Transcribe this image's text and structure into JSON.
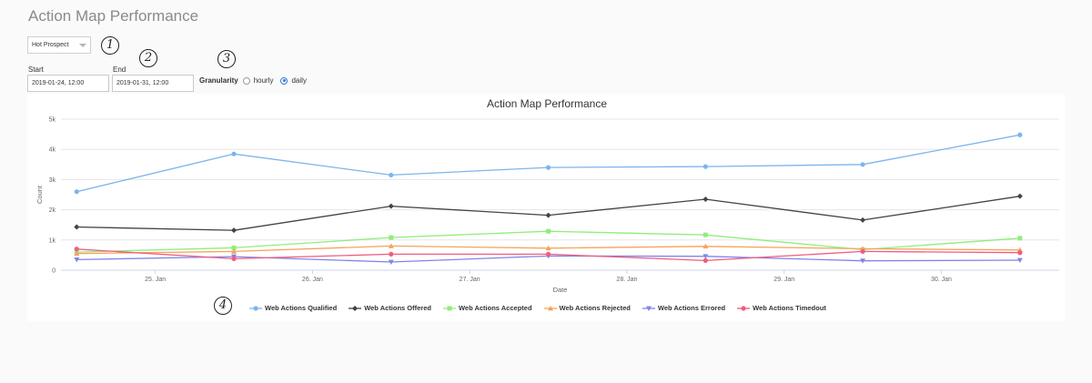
{
  "page": {
    "title": "Action Map Performance"
  },
  "controls": {
    "dropdown": {
      "value": "Hot Prospect"
    },
    "start": {
      "label": "Start",
      "value": "2019-01-24, 12:00"
    },
    "end": {
      "label": "End",
      "value": "2019-01-31, 12:00"
    },
    "granularity": {
      "label": "Granularity",
      "options": [
        "hourly",
        "daily"
      ],
      "selected": "daily"
    }
  },
  "annotations": [
    "1",
    "2",
    "3",
    "4"
  ],
  "chart_data": {
    "type": "line",
    "title": "Action Map Performance",
    "xlabel": "Date",
    "ylabel": "Count",
    "x": [
      "2019-01-24 12:00",
      "2019-01-25 12:00",
      "2019-01-26 12:00",
      "2019-01-27 12:00",
      "2019-01-28 12:00",
      "2019-01-29 12:00",
      "2019-01-30 12:00"
    ],
    "x_tick_labels": [
      "25. Jan",
      "26. Jan",
      "27. Jan",
      "28. Jan",
      "29. Jan",
      "30. Jan"
    ],
    "y_tick_labels": [
      "0",
      "1k",
      "2k",
      "3k",
      "4k",
      "5k"
    ],
    "ylim": [
      0,
      5000
    ],
    "grid": true,
    "legend_position": "bottom",
    "series": [
      {
        "name": "Web Actions Qualified",
        "color": "#7cb5ec",
        "marker": "circle",
        "values": [
          2600,
          3850,
          3150,
          3400,
          3430,
          3500,
          4480
        ]
      },
      {
        "name": "Web Actions Offered",
        "color": "#434348",
        "marker": "diamond",
        "values": [
          1430,
          1320,
          2120,
          1820,
          2350,
          1660,
          2450
        ]
      },
      {
        "name": "Web Actions Accepted",
        "color": "#90ed7d",
        "marker": "square",
        "values": [
          600,
          740,
          1080,
          1290,
          1170,
          680,
          1060
        ]
      },
      {
        "name": "Web Actions Rejected",
        "color": "#f7a35c",
        "marker": "triangle",
        "values": [
          550,
          620,
          800,
          730,
          790,
          710,
          670
        ]
      },
      {
        "name": "Web Actions Errored",
        "color": "#8085e9",
        "marker": "triangle-down",
        "values": [
          350,
          450,
          270,
          470,
          460,
          310,
          330
        ]
      },
      {
        "name": "Web Actions Timedout",
        "color": "#f15c80",
        "marker": "circle",
        "values": [
          700,
          380,
          530,
          530,
          320,
          620,
          580
        ]
      }
    ]
  }
}
